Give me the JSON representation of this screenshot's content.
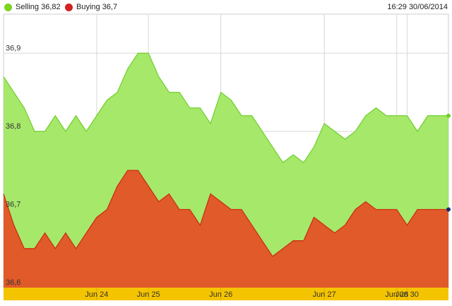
{
  "legend": {
    "selling_label": "Selling 36,82",
    "buying_label": "Buying 36,7",
    "selling_color": "#7ed321",
    "buying_color": "#d42020"
  },
  "timestamp": "16:29 30/06/2014",
  "chart_data": {
    "type": "area",
    "title": "",
    "xlabel": "",
    "ylabel": "",
    "ylim": [
      36.6,
      36.95
    ],
    "y_ticks": [
      {
        "value": 36.6,
        "label": "36,6"
      },
      {
        "value": 36.7,
        "label": "36,7"
      },
      {
        "value": 36.8,
        "label": "36,8"
      },
      {
        "value": 36.9,
        "label": "36,9"
      }
    ],
    "x_ticks": [
      {
        "index": 9,
        "label": "Jun 24"
      },
      {
        "index": 14,
        "label": "Jun 25"
      },
      {
        "index": 21,
        "label": "Jun 26"
      },
      {
        "index": 31,
        "label": "Jun 27"
      },
      {
        "index": 38,
        "label": "Jun 28"
      },
      {
        "index": 39,
        "label": "Jun 30"
      }
    ],
    "grid": true,
    "legend_position": "top-left",
    "series": [
      {
        "name": "Selling",
        "fill": "#a6e86a",
        "line": "#6fcf2a",
        "values": [
          36.87,
          36.85,
          36.83,
          36.8,
          36.8,
          36.82,
          36.8,
          36.82,
          36.8,
          36.82,
          36.84,
          36.85,
          36.88,
          36.9,
          36.9,
          36.87,
          36.85,
          36.85,
          36.83,
          36.83,
          36.81,
          36.85,
          36.84,
          36.82,
          36.82,
          36.8,
          36.78,
          36.76,
          36.77,
          36.76,
          36.78,
          36.81,
          36.8,
          36.79,
          36.8,
          36.82,
          36.83,
          36.82,
          36.82,
          36.82,
          36.8,
          36.82,
          36.82,
          36.82
        ]
      },
      {
        "name": "Buying",
        "fill": "#e05a2a",
        "line": "#cc2a10",
        "values": [
          36.72,
          36.68,
          36.65,
          36.65,
          36.67,
          36.65,
          36.67,
          36.65,
          36.67,
          36.69,
          36.7,
          36.73,
          36.75,
          36.75,
          36.73,
          36.71,
          36.72,
          36.7,
          36.7,
          36.68,
          36.72,
          36.71,
          36.7,
          36.7,
          36.68,
          36.66,
          36.64,
          36.65,
          36.66,
          36.66,
          36.69,
          36.68,
          36.67,
          36.68,
          36.7,
          36.71,
          36.7,
          36.7,
          36.7,
          36.68,
          36.7,
          36.7,
          36.7,
          36.7
        ]
      }
    ]
  }
}
